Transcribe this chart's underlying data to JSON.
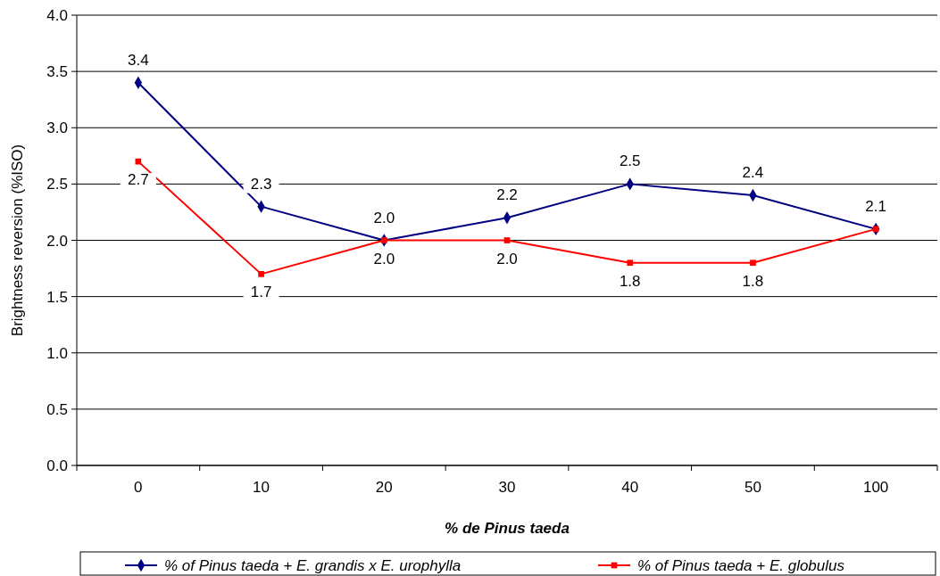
{
  "chart_data": {
    "type": "line",
    "xlabel": "% de Pinus taeda",
    "ylabel": "Brightness reversion (%ISO)",
    "categories": [
      "0",
      "10",
      "20",
      "30",
      "40",
      "50",
      "100"
    ],
    "series": [
      {
        "name": "% of Pinus taeda + E. grandis x E. urophylla",
        "color": "#000080",
        "marker": "diamond",
        "values": [
          3.4,
          2.3,
          2.0,
          2.2,
          2.5,
          2.4,
          2.1
        ],
        "value_labels": [
          "3.4",
          "2.3",
          "2.0",
          "2.2",
          "2.5",
          "2.4",
          "2.1"
        ]
      },
      {
        "name": "% of Pinus taeda + E. globulus",
        "color": "#ff0000",
        "marker": "square",
        "values": [
          2.7,
          1.7,
          2.0,
          2.0,
          1.8,
          1.8,
          2.1
        ],
        "value_labels": [
          "2.7",
          "1.7",
          "2.0",
          "2.0",
          "1.8",
          "1.8",
          null
        ]
      }
    ],
    "ylim": [
      0,
      4
    ],
    "yticks": [
      {
        "value": 0,
        "label": "0.0"
      },
      {
        "value": 0.5,
        "label": "0.5"
      },
      {
        "value": 1,
        "label": "1.0"
      },
      {
        "value": 1.5,
        "label": "1.5"
      },
      {
        "value": 2,
        "label": "2.0"
      },
      {
        "value": 2.5,
        "label": "2.5"
      },
      {
        "value": 3,
        "label": "3.0"
      },
      {
        "value": 3.5,
        "label": "3.5"
      },
      {
        "value": 4,
        "label": "4.0"
      }
    ],
    "grid": "y",
    "legend": "bottom",
    "line_style": "solid"
  }
}
